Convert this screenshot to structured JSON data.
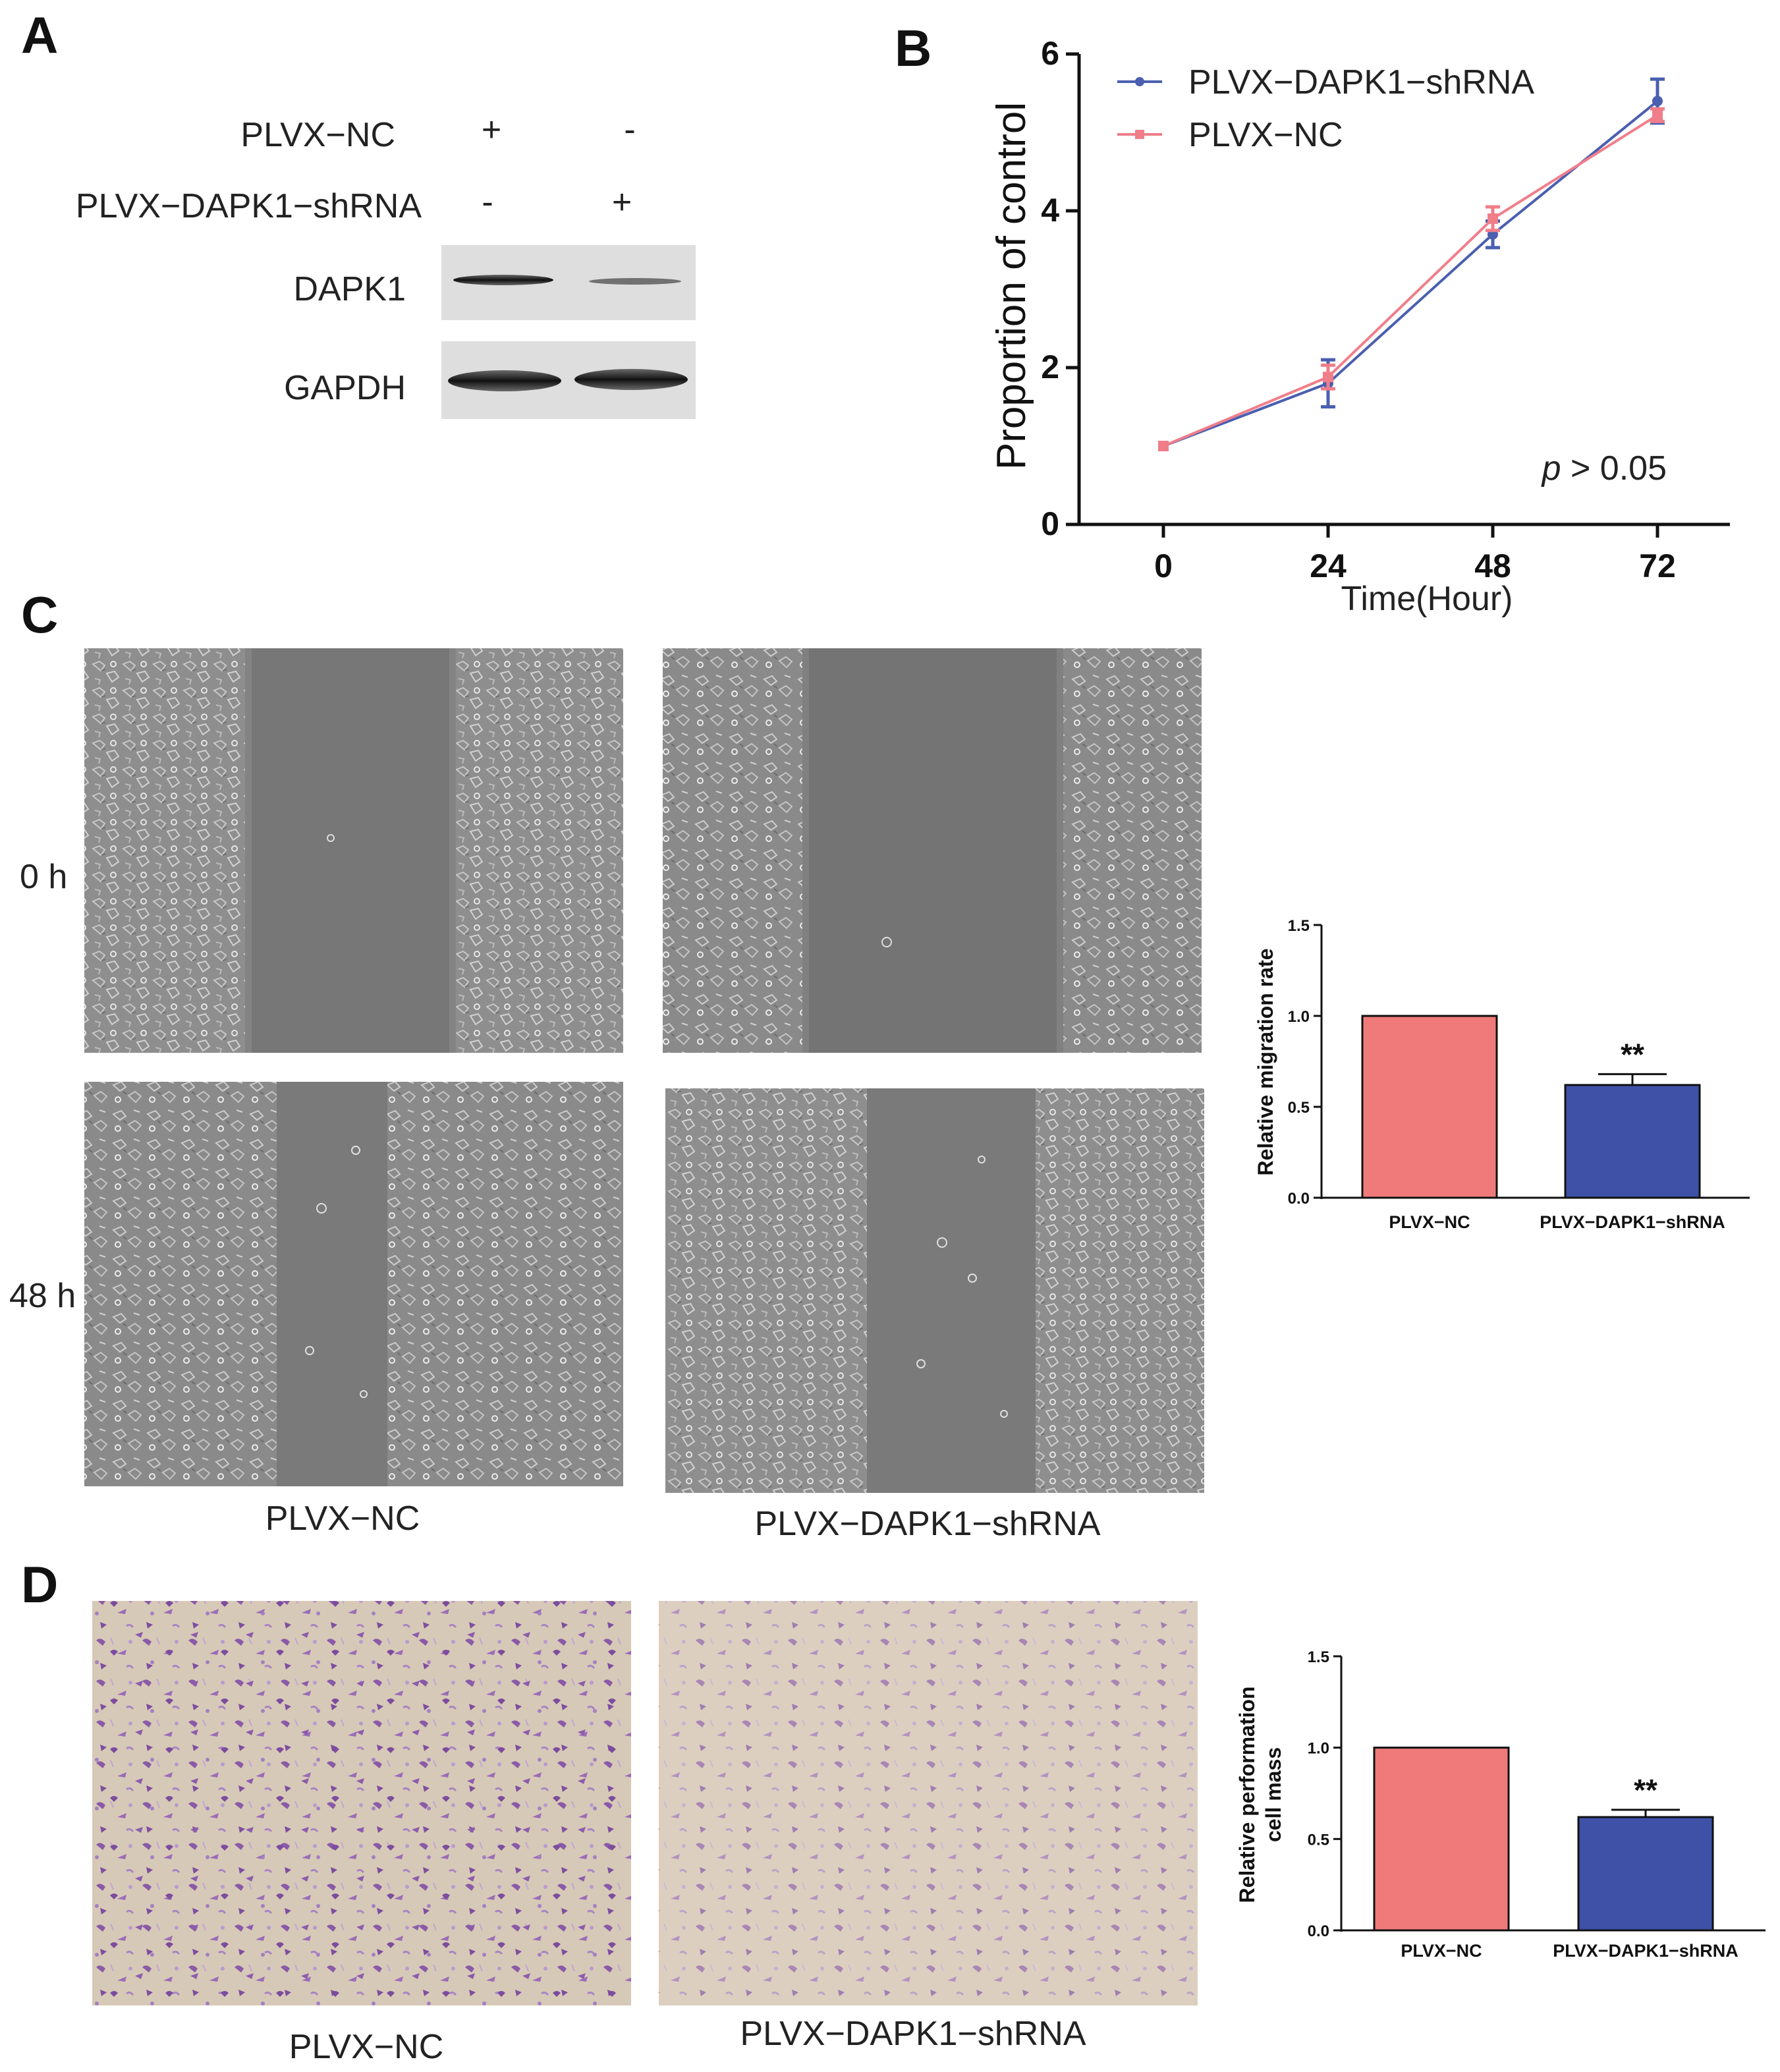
{
  "panels": {
    "A": "A",
    "B": "B",
    "C": "C",
    "D": "D"
  },
  "panel_a": {
    "row_plvx_nc": "PLVX−NC",
    "row_plvx_dapk1": "PLVX−DAPK1−shRNA",
    "nc_signs": [
      "+",
      "-"
    ],
    "shrna_signs": [
      "-",
      "+"
    ],
    "blot_dapk1": "DAPK1",
    "blot_gapdh": "GAPDH"
  },
  "panel_c": {
    "time_0": "0 h",
    "time_48": "48 h",
    "caption_nc": "PLVX−NC",
    "caption_shrna": "PLVX−DAPK1−shRNA"
  },
  "panel_d": {
    "caption_nc": "PLVX−NC",
    "caption_shrna": "PLVX−DAPK1−shRNA"
  },
  "colors": {
    "nc": "#f07a7a",
    "shrna": "#3f51a6",
    "line_shrna": "#4a5fb0",
    "line_nc": "#f07e8a"
  },
  "chart_data": [
    {
      "id": "B",
      "type": "line",
      "x": [
        0,
        24,
        48,
        72
      ],
      "xticks": [
        "0",
        "24",
        "48",
        "72"
      ],
      "xlabel": "Time(Hour)",
      "ylabel": "Proportion of control",
      "yticks": [
        "0",
        "2",
        "4",
        "6"
      ],
      "ylim": [
        0,
        6
      ],
      "annotation": "p > 0.05",
      "annotation_p": "p",
      "annotation_rest": " > 0.05",
      "legend_position": "top-left",
      "series": [
        {
          "name": "PLVX−DAPK1−shRNA",
          "values": [
            1.0,
            1.8,
            3.7,
            5.4
          ],
          "errors": [
            0.0,
            0.3,
            0.17,
            0.28
          ]
        },
        {
          "name": "PLVX−NC",
          "values": [
            1.0,
            1.88,
            3.9,
            5.22
          ],
          "errors": [
            0.0,
            0.15,
            0.15,
            0.08
          ]
        }
      ]
    },
    {
      "id": "C",
      "type": "bar",
      "categories": [
        "PLVX−NC",
        "PLVX−DAPK1−shRNA"
      ],
      "values": [
        1.0,
        0.62
      ],
      "errors": [
        0.0,
        0.06
      ],
      "ylabel": "Relative migration rate",
      "yticks": [
        "0.0",
        "0.5",
        "1.0",
        "1.5"
      ],
      "ylim": [
        0,
        1.5
      ],
      "significance": "**"
    },
    {
      "id": "D",
      "type": "bar",
      "categories": [
        "PLVX−NC",
        "PLVX−DAPK1−shRNA"
      ],
      "values": [
        1.0,
        0.62
      ],
      "errors": [
        0.0,
        0.04
      ],
      "ylabel_line1": "Relative performation",
      "ylabel_line2": "cell mass",
      "yticks": [
        "0.0",
        "0.5",
        "1.0",
        "1.5"
      ],
      "ylim": [
        0,
        1.5
      ],
      "significance": "**"
    }
  ]
}
